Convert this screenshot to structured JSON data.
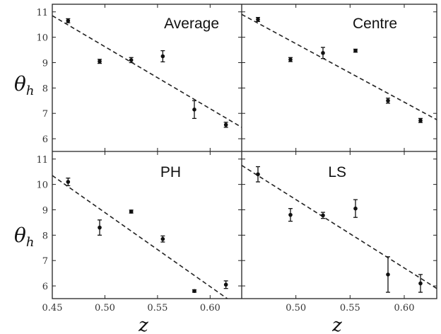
{
  "chart_data": [
    {
      "type": "scatter",
      "title": "Average",
      "ylabel": "θ_h",
      "xlim": [
        0.45,
        0.63
      ],
      "ylim": [
        5.5,
        11.3
      ],
      "points": [
        {
          "x": 0.465,
          "y": 10.65,
          "err": 0.08
        },
        {
          "x": 0.495,
          "y": 9.05,
          "err": 0.08
        },
        {
          "x": 0.525,
          "y": 9.1,
          "err": 0.1
        },
        {
          "x": 0.555,
          "y": 9.25,
          "err": 0.22
        },
        {
          "x": 0.585,
          "y": 7.15,
          "err": 0.35
        },
        {
          "x": 0.615,
          "y": 6.55,
          "err": 0.1
        }
      ],
      "fit": {
        "x0": 0.45,
        "y0": 10.85,
        "x1": 0.63,
        "y1": 6.45
      }
    },
    {
      "type": "scatter",
      "title": "Centre",
      "xlim": [
        0.45,
        0.63
      ],
      "ylim": [
        5.5,
        11.3
      ],
      "points": [
        {
          "x": 0.465,
          "y": 10.7,
          "err": 0.08
        },
        {
          "x": 0.495,
          "y": 9.12,
          "err": 0.08
        },
        {
          "x": 0.525,
          "y": 9.38,
          "err": 0.22
        },
        {
          "x": 0.555,
          "y": 9.47,
          "err": 0.06
        },
        {
          "x": 0.585,
          "y": 7.5,
          "err": 0.1
        },
        {
          "x": 0.615,
          "y": 6.72,
          "err": 0.08
        }
      ],
      "fit": {
        "x0": 0.45,
        "y0": 10.9,
        "x1": 0.63,
        "y1": 6.75
      }
    },
    {
      "type": "scatter",
      "title": "PH",
      "ylabel": "θ_h",
      "xlabel": "z",
      "xlim": [
        0.45,
        0.63
      ],
      "ylim": [
        5.5,
        11.3
      ],
      "xticks": [
        "0.45",
        "0.50",
        "0.55",
        "0.60"
      ],
      "points": [
        {
          "x": 0.465,
          "y": 10.1,
          "err": 0.15
        },
        {
          "x": 0.495,
          "y": 8.3,
          "err": 0.3
        },
        {
          "x": 0.525,
          "y": 8.93,
          "err": 0.06
        },
        {
          "x": 0.555,
          "y": 7.85,
          "err": 0.12
        },
        {
          "x": 0.585,
          "y": 5.8,
          "err": 0.05
        },
        {
          "x": 0.615,
          "y": 6.05,
          "err": 0.15
        }
      ],
      "fit": {
        "x0": 0.45,
        "y0": 10.35,
        "x1": 0.63,
        "y1": 5.1
      }
    },
    {
      "type": "scatter",
      "title": "LS",
      "xlabel": "z",
      "xlim": [
        0.45,
        0.63
      ],
      "ylim": [
        5.5,
        11.3
      ],
      "xticks": [
        "0.50",
        "0.55",
        "0.60"
      ],
      "points": [
        {
          "x": 0.465,
          "y": 10.4,
          "err": 0.3
        },
        {
          "x": 0.495,
          "y": 8.8,
          "err": 0.25
        },
        {
          "x": 0.525,
          "y": 8.78,
          "err": 0.12
        },
        {
          "x": 0.555,
          "y": 9.05,
          "err": 0.35
        },
        {
          "x": 0.585,
          "y": 6.45,
          "err": 0.7
        },
        {
          "x": 0.615,
          "y": 6.1,
          "err": 0.35
        }
      ],
      "fit": {
        "x0": 0.45,
        "y0": 10.75,
        "x1": 0.63,
        "y1": 5.9
      }
    }
  ],
  "axes": {
    "yticks": [
      "6",
      "7",
      "8",
      "9",
      "10",
      "11"
    ],
    "ylabel_main": "θ",
    "ylabel_sub": "h",
    "xlabel": "z"
  }
}
